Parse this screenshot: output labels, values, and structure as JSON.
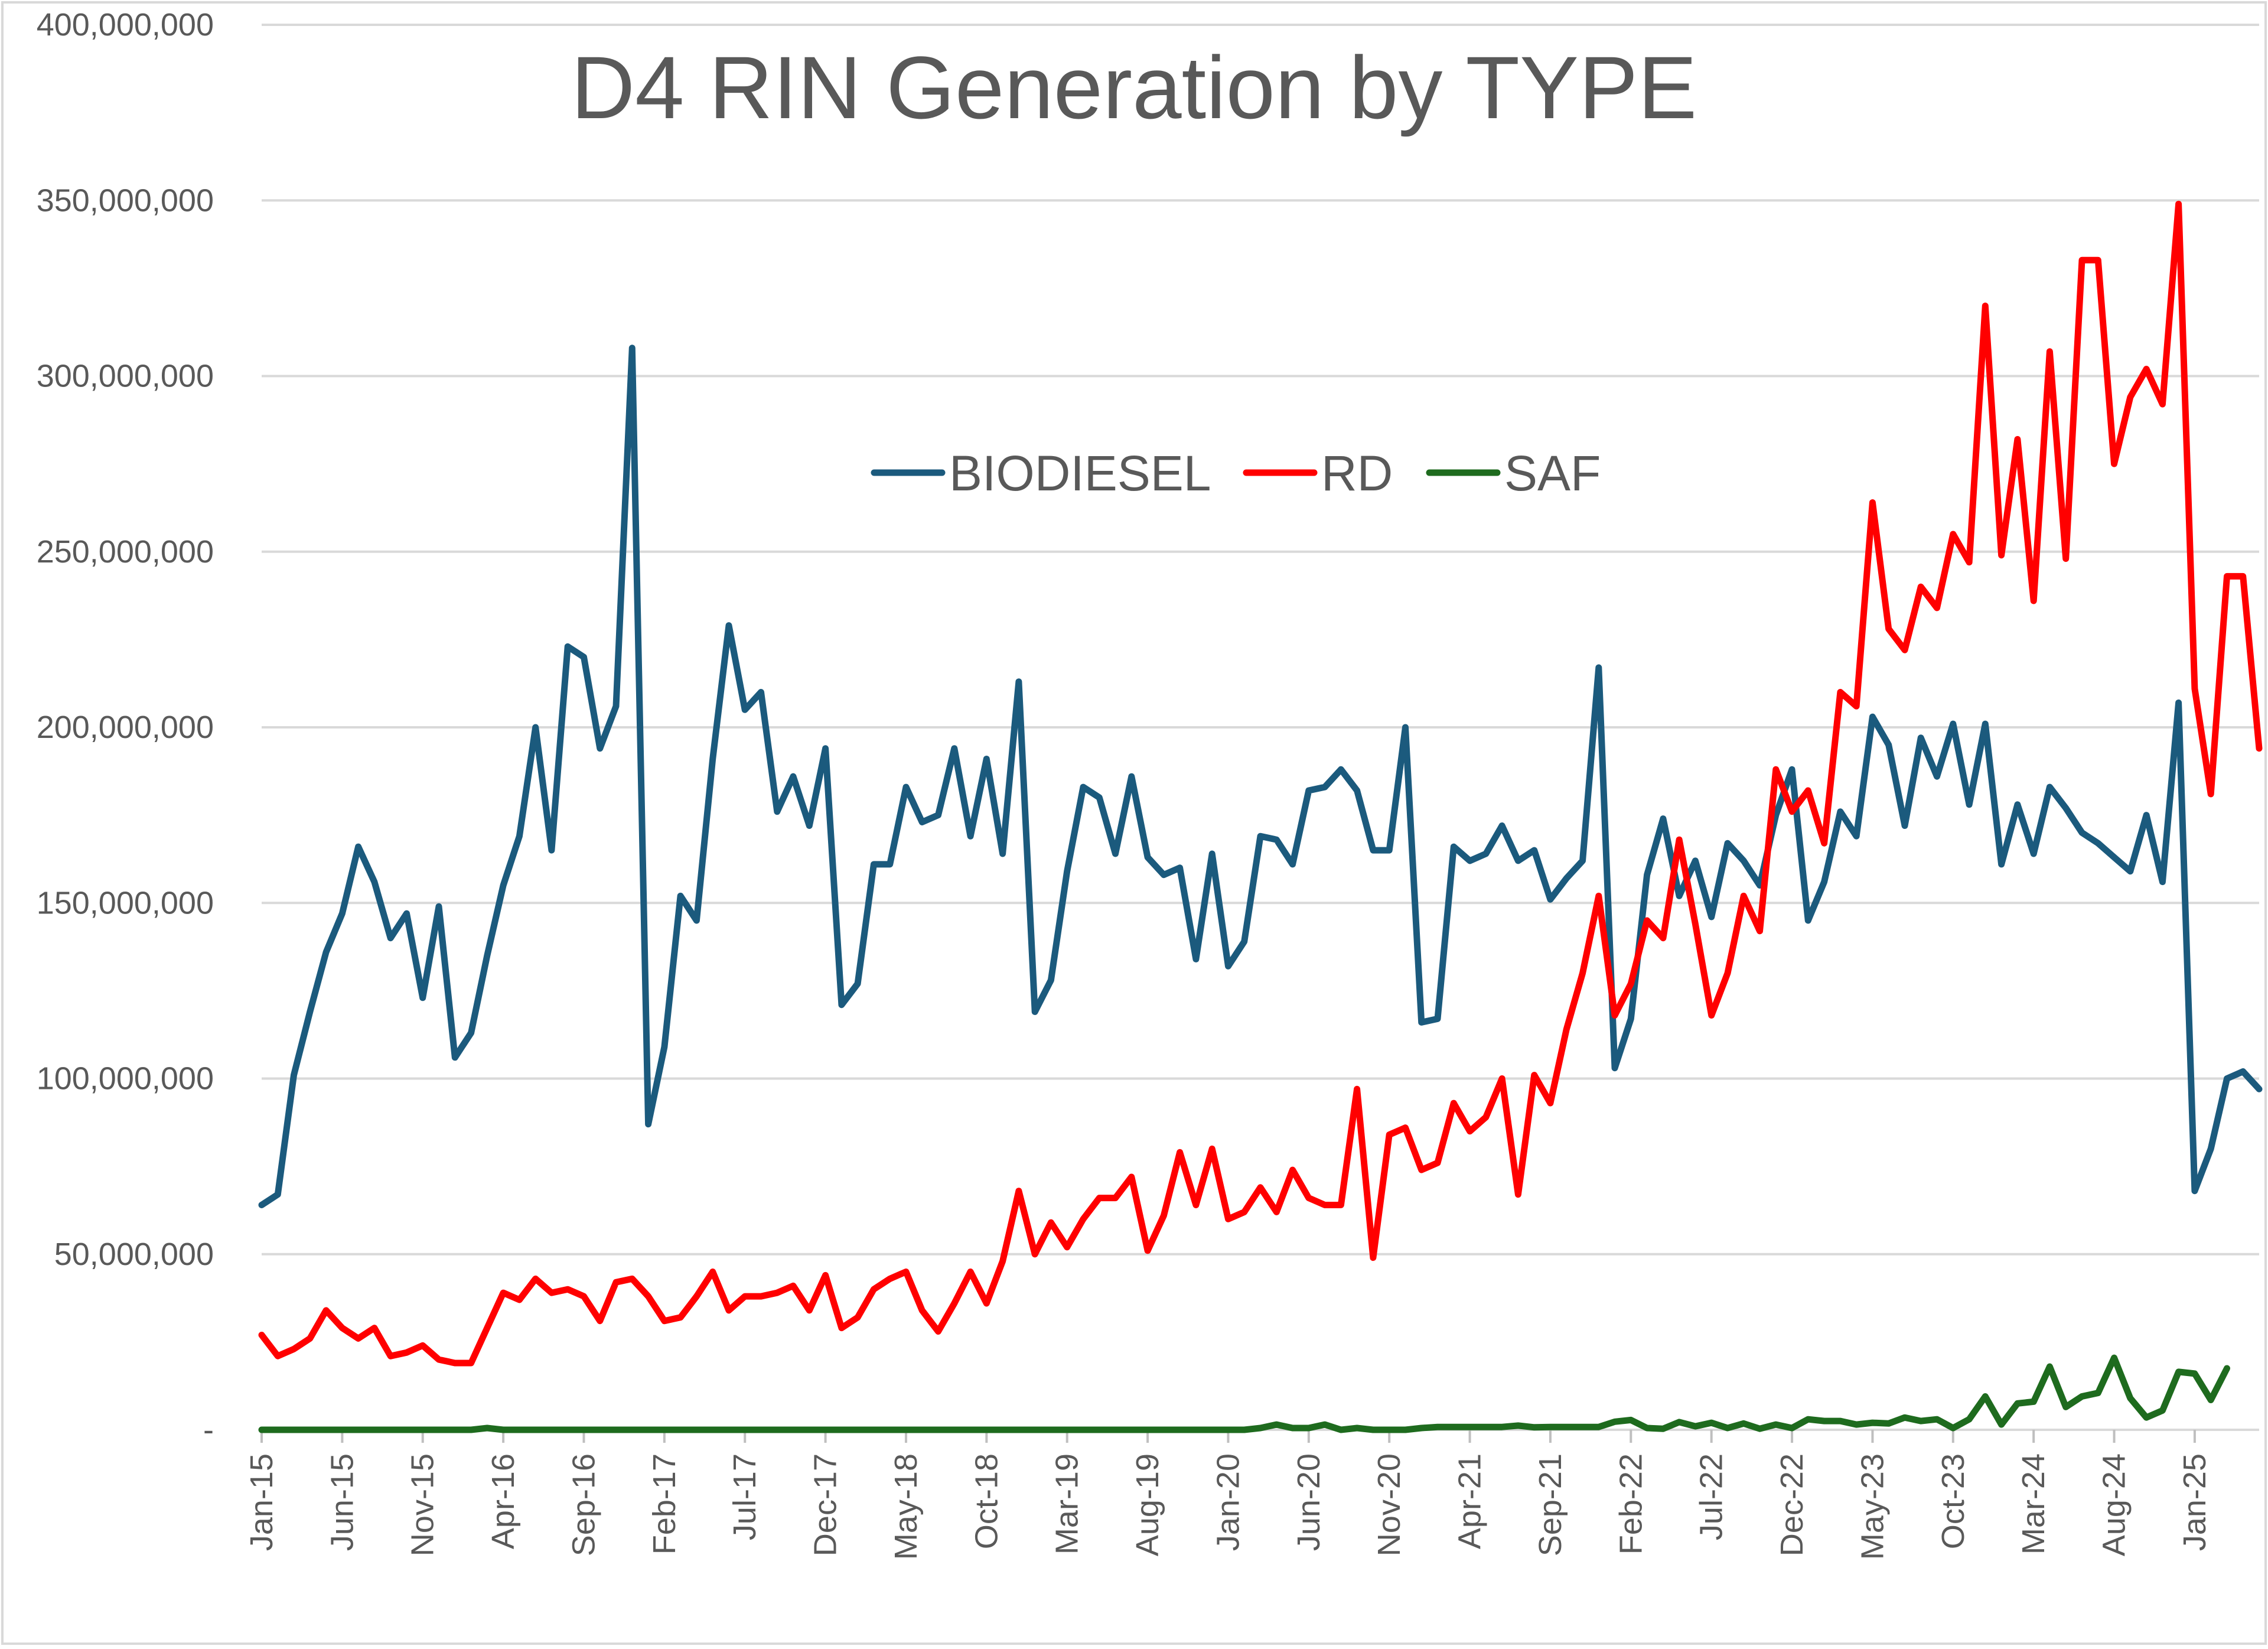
{
  "chart_data": {
    "type": "line",
    "title": "D4 RIN Generation by TYPE",
    "xlabel": "",
    "ylabel": "",
    "ylim": [
      0,
      400000000
    ],
    "y_ticks": [
      "-",
      "50,000,000",
      "100,000,000",
      "150,000,000",
      "200,000,000",
      "250,000,000",
      "300,000,000",
      "350,000,000",
      "400,000,000"
    ],
    "x_tick_labels": [
      "Jan-15",
      "Jun-15",
      "Nov-15",
      "Apr-16",
      "Sep-16",
      "Feb-17",
      "Jul-17",
      "Dec-17",
      "May-18",
      "Oct-18",
      "Mar-19",
      "Aug-19",
      "Jan-20",
      "Jun-20",
      "Nov-20",
      "Apr-21",
      "Sep-21",
      "Feb-22",
      "Jul-22",
      "Dec-22",
      "May-23",
      "Oct-23",
      "Mar-24",
      "Aug-24",
      "Jan-25"
    ],
    "x_start": "Jan-15",
    "grid": true,
    "legend_position": "top-center",
    "series": [
      {
        "name": "BIODIESEL",
        "color": "#1b5a7d",
        "values": [
          64000000,
          67000000,
          101000000,
          119000000,
          136000000,
          147000000,
          166000000,
          156000000,
          140000000,
          147000000,
          123000000,
          149000000,
          106000000,
          113000000,
          135000000,
          155000000,
          169000000,
          200000000,
          165000000,
          223000000,
          220000000,
          194000000,
          206000000,
          308000000,
          87000000,
          109000000,
          152000000,
          145000000,
          191000000,
          229000000,
          205000000,
          210000000,
          176000000,
          186000000,
          172000000,
          194000000,
          121000000,
          127000000,
          161000000,
          161000000,
          183000000,
          173000000,
          175000000,
          194000000,
          169000000,
          191000000,
          164000000,
          213000000,
          119000000,
          128000000,
          159000000,
          183000000,
          180000000,
          164000000,
          186000000,
          163000000,
          158000000,
          160000000,
          134000000,
          164000000,
          132000000,
          139000000,
          169000000,
          168000000,
          161000000,
          182000000,
          183000000,
          188000000,
          182000000,
          165000000,
          165000000,
          200000000,
          116000000,
          117000000,
          166000000,
          162000000,
          164000000,
          172000000,
          162000000,
          165000000,
          151000000,
          157000000,
          162000000,
          217000000,
          103000000,
          117000000,
          158000000,
          174000000,
          152000000,
          162000000,
          146000000,
          167000000,
          162000000,
          155000000,
          175000000,
          188000000,
          145000000,
          156000000,
          176000000,
          169000000,
          203000000,
          195000000,
          172000000,
          197000000,
          186000000,
          201000000,
          178000000,
          201000000,
          161000000,
          178000000,
          164000000,
          183000000,
          177000000,
          170000000,
          167000000,
          163000000,
          159000000,
          175000000,
          156000000,
          207000000,
          68000000,
          80000000,
          100000000,
          102000000,
          97000000
        ]
      },
      {
        "name": "RD",
        "color": "#ff0000",
        "values": [
          27000000,
          21000000,
          23000000,
          26000000,
          34000000,
          29000000,
          26000000,
          29000000,
          21000000,
          22000000,
          24000000,
          20000000,
          19000000,
          19000000,
          29000000,
          39000000,
          37000000,
          43000000,
          39000000,
          40000000,
          38000000,
          31000000,
          42000000,
          43000000,
          38000000,
          31000000,
          32000000,
          38000000,
          45000000,
          34000000,
          38000000,
          38000000,
          39000000,
          41000000,
          34000000,
          44000000,
          29000000,
          32000000,
          40000000,
          43000000,
          45000000,
          34000000,
          28000000,
          36000000,
          45000000,
          36000000,
          48000000,
          68000000,
          50000000,
          59000000,
          52000000,
          60000000,
          66000000,
          66000000,
          72000000,
          51000000,
          61000000,
          79000000,
          64000000,
          80000000,
          60000000,
          62000000,
          69000000,
          62000000,
          74000000,
          66000000,
          64000000,
          64000000,
          97000000,
          49000000,
          84000000,
          86000000,
          74000000,
          76000000,
          93000000,
          85000000,
          89000000,
          100000000,
          67000000,
          101000000,
          93000000,
          114000000,
          130000000,
          152000000,
          118000000,
          127000000,
          145000000,
          140000000,
          168000000,
          144000000,
          118000000,
          130000000,
          152000000,
          142000000,
          188000000,
          176000000,
          182000000,
          167000000,
          210000000,
          206000000,
          264000000,
          228000000,
          222000000,
          240000000,
          234000000,
          255000000,
          247000000,
          320000000,
          249000000,
          282000000,
          236000000,
          307000000,
          248000000,
          333000000,
          333000000,
          275000000,
          294000000,
          302000000,
          292000000,
          349000000,
          211000000,
          181000000,
          243000000,
          243000000,
          194000000
        ]
      },
      {
        "name": "SAF",
        "color": "#1e6b1e",
        "values": [
          0,
          0,
          0,
          0,
          0,
          0,
          0,
          0,
          0,
          0,
          0,
          0,
          0,
          0,
          500000,
          0,
          0,
          0,
          0,
          0,
          0,
          0,
          0,
          0,
          0,
          0,
          0,
          0,
          0,
          0,
          0,
          0,
          0,
          0,
          0,
          0,
          0,
          0,
          0,
          0,
          0,
          0,
          0,
          0,
          0,
          0,
          0,
          0,
          0,
          0,
          0,
          0,
          0,
          0,
          0,
          0,
          0,
          0,
          0,
          0,
          0,
          0,
          500000,
          1500000,
          500000,
          500000,
          1500000,
          0,
          500000,
          0,
          0,
          0,
          500000,
          800000,
          800000,
          800000,
          800000,
          800000,
          1200000,
          700000,
          800000,
          800000,
          800000,
          800000,
          2300000,
          2800000,
          500000,
          300000,
          2200000,
          1000000,
          2000000,
          500000,
          1800000,
          300000,
          1500000,
          500000,
          3000000,
          2500000,
          2500000,
          1500000,
          2000000,
          1800000,
          3500000,
          2500000,
          3000000,
          500000,
          3000000,
          9500000,
          1500000,
          7500000,
          8000000,
          18000000,
          6500000,
          9500000,
          10500000,
          20500000,
          9000000,
          3500000,
          5500000,
          16500000,
          16000000,
          8500000,
          17500000
        ]
      }
    ]
  }
}
